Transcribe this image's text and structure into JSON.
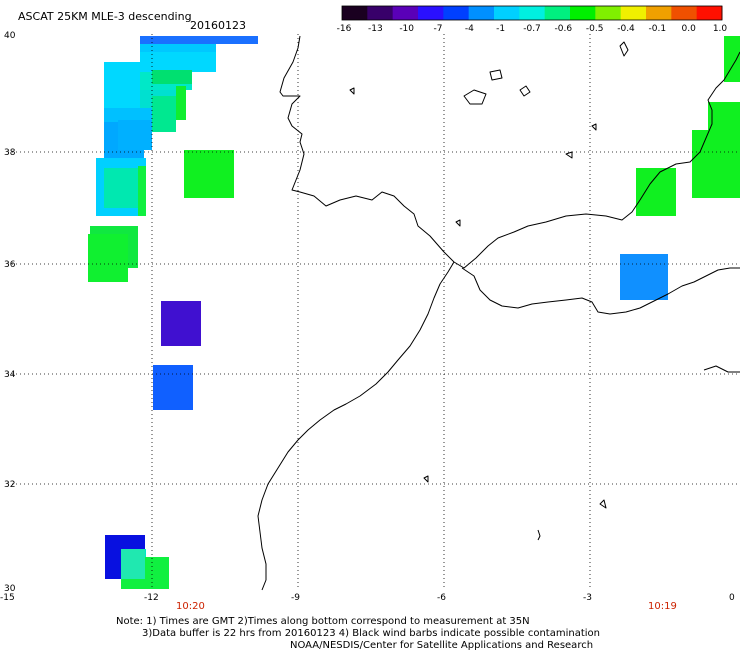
{
  "title": "ASCAT 25KM MLE-3 descending",
  "date": "20160123",
  "colorbar": {
    "colors": [
      "#1a0020",
      "#38006a",
      "#5a00b8",
      "#2a10ff",
      "#0040ff",
      "#0090ff",
      "#00d0ff",
      "#00f0e0",
      "#00f080",
      "#00f000",
      "#80f000",
      "#f0f000",
      "#f0a000",
      "#f05000",
      "#ff1000"
    ],
    "labels": [
      "-16",
      "-13",
      "-10",
      "-7",
      "-4",
      "-1",
      "-0.7",
      "-0.6",
      "-0.5",
      "-0.4",
      "-0.1",
      "0.0",
      "1.0"
    ]
  },
  "axes": {
    "lon_ticks": [
      "-15",
      "-12",
      "-9",
      "-6",
      "-3",
      "0"
    ],
    "lat_ticks": [
      "40",
      "38",
      "36",
      "34",
      "32",
      "30"
    ]
  },
  "pass_times": [
    "10:20",
    "10:19"
  ],
  "notes": [
    "Note: 1) Times are GMT 2)Times along bottom correspond to measurement at 35N",
    "3)Data buffer is 22 hrs from 20160123 4) Black wind barbs indicate possible contamination",
    "NOAA/NESDIS/Center for Satellite Applications and Research"
  ]
}
